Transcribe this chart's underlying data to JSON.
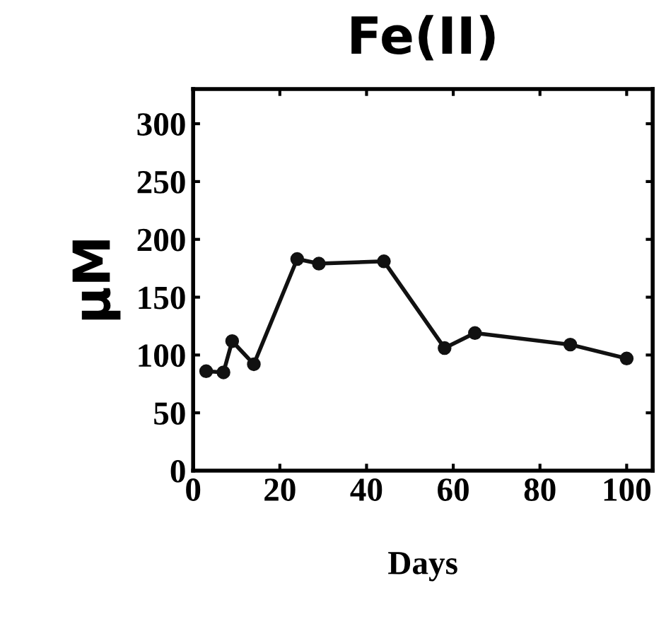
{
  "chart_data": {
    "type": "line",
    "title": "Fe(II)",
    "xlabel": "Days",
    "ylabel": "μM",
    "x": [
      3,
      7,
      9,
      14,
      24,
      29,
      44,
      58,
      65,
      87,
      100
    ],
    "series": [
      {
        "color": "#111111",
        "values": [
          86,
          85,
          112,
          92,
          183,
          179,
          181,
          106,
          119,
          109,
          97
        ]
      }
    ],
    "xlim": [
      0,
      106
    ],
    "xticks": [
      0,
      20,
      40,
      60,
      80,
      100
    ],
    "ylim": [
      0,
      330
    ],
    "yticks": [
      0,
      50,
      100,
      150,
      200,
      250,
      300
    ],
    "marker": "circle",
    "line_style": "solid",
    "grid": false,
    "legend": false
  }
}
